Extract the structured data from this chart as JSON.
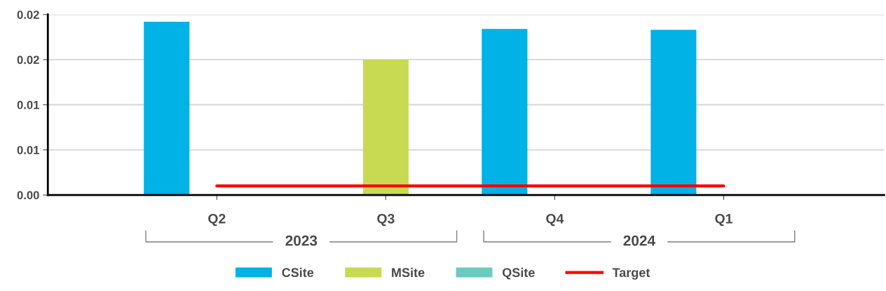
{
  "chart_data": {
    "type": "bar",
    "categories": [
      "Q2",
      "Q3",
      "Q4",
      "Q1"
    ],
    "series": [
      {
        "name": "CSite",
        "color": "#00b2e5",
        "values": [
          0.0192,
          null,
          0.0184,
          0.0183
        ]
      },
      {
        "name": "MSite",
        "color": "#c8da52",
        "values": [
          null,
          0.015,
          null,
          null
        ]
      },
      {
        "name": "QSite",
        "color": "#6ccabf",
        "values": [
          null,
          null,
          null,
          null
        ]
      },
      {
        "name": "Target",
        "type": "line",
        "color": "#ff0000",
        "values": [
          0.001,
          0.001,
          0.001,
          0.001
        ]
      }
    ],
    "annotations": [
      "2023",
      "2024"
    ],
    "ylim": [
      0,
      0.02
    ],
    "yticks": [
      {
        "value": 0,
        "label": "0.00"
      },
      {
        "value": 0.005,
        "label": "0.01"
      },
      {
        "value": 0.01,
        "label": "0.01"
      },
      {
        "value": 0.015,
        "label": "0.02"
      },
      {
        "value": 0.02,
        "label": "0.02"
      }
    ],
    "grid": "y",
    "legend": "bottom"
  }
}
